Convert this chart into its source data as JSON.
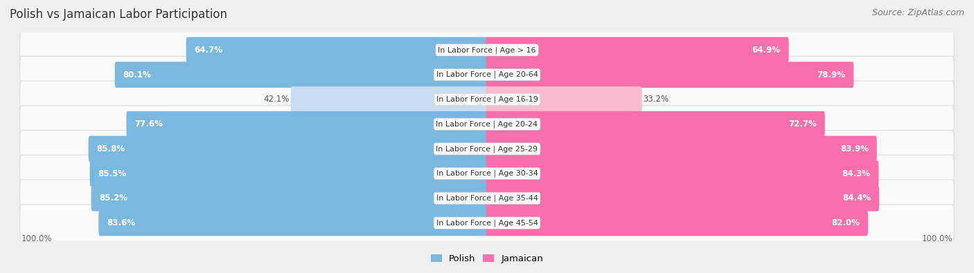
{
  "title": "Polish vs Jamaican Labor Participation",
  "source": "Source: ZipAtlas.com",
  "categories": [
    "In Labor Force | Age > 16",
    "In Labor Force | Age 20-64",
    "In Labor Force | Age 16-19",
    "In Labor Force | Age 20-24",
    "In Labor Force | Age 25-29",
    "In Labor Force | Age 30-34",
    "In Labor Force | Age 35-44",
    "In Labor Force | Age 45-54"
  ],
  "polish_values": [
    64.7,
    80.1,
    42.1,
    77.6,
    85.8,
    85.5,
    85.2,
    83.6
  ],
  "jamaican_values": [
    64.9,
    78.9,
    33.2,
    72.7,
    83.9,
    84.3,
    84.4,
    82.0
  ],
  "polish_color_strong": "#7BB8E0",
  "polish_color_light": "#C8DCF0",
  "jamaican_color_strong": "#F76FAB",
  "jamaican_color_light": "#F8BBCF",
  "bg_color": "#EFEFEF",
  "row_bg_color": "#FAFAFA",
  "row_border_color": "#DDDDDD",
  "label_white": "#FFFFFF",
  "label_dark": "#555555",
  "threshold": 50,
  "legend_polish": "Polish",
  "legend_jamaican": "Jamaican",
  "title_fontsize": 12,
  "source_fontsize": 9,
  "bar_label_fontsize": 8.5,
  "category_fontsize": 8,
  "legend_fontsize": 9.5,
  "axis_label_fontsize": 8.5
}
